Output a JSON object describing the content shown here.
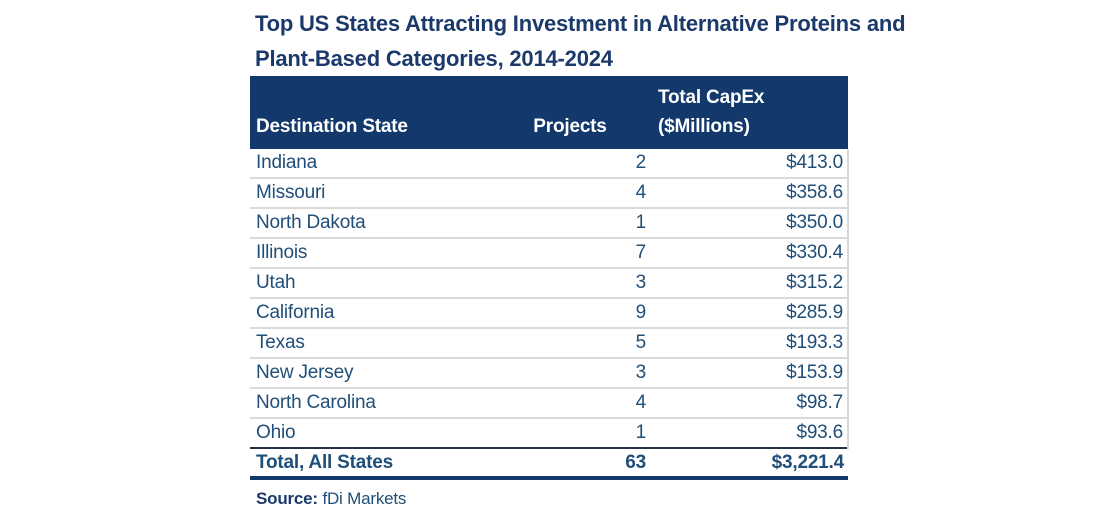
{
  "title": "Top US States Attracting Investment in Alternative Proteins and Plant-Based Categories, 2014-2024",
  "table": {
    "headers": [
      "Destination State",
      "Projects",
      "Total CapEx ($Millions)"
    ],
    "rows": [
      {
        "state": "Indiana",
        "projects": "2",
        "capex": "$413.0"
      },
      {
        "state": "Missouri",
        "projects": "4",
        "capex": "$358.6"
      },
      {
        "state": "North Dakota",
        "projects": "1",
        "capex": "$350.0"
      },
      {
        "state": "Illinois",
        "projects": "7",
        "capex": "$330.4"
      },
      {
        "state": "Utah",
        "projects": "3",
        "capex": "$315.2"
      },
      {
        "state": "California",
        "projects": "9",
        "capex": "$285.9"
      },
      {
        "state": "Texas",
        "projects": "5",
        "capex": "$193.3"
      },
      {
        "state": "New Jersey",
        "projects": "3",
        "capex": "$153.9"
      },
      {
        "state": "North Carolina",
        "projects": "4",
        "capex": "$98.7"
      },
      {
        "state": "Ohio",
        "projects": "1",
        "capex": "$93.6"
      }
    ],
    "total": {
      "state": "Total, All States",
      "projects": "63",
      "capex": "$3,221.4"
    }
  },
  "source": {
    "label": "Source:",
    "value": "fDi Markets"
  },
  "colors": {
    "header_bg": "#13386c",
    "header_text": "#ffffff",
    "title_text": "#1b3a6b",
    "body_text": "#1f4e79",
    "divider": "#d9d9d9",
    "total_top_border": "#253046",
    "total_bottom_border": "#13386c"
  },
  "chart_data": {
    "type": "table",
    "title": "Top US States Attracting Investment in Alternative Proteins and Plant-Based Categories, 2014-2024",
    "columns": [
      "Destination State",
      "Projects",
      "Total CapEx ($Millions)"
    ],
    "rows": [
      [
        "Indiana",
        2,
        413.0
      ],
      [
        "Missouri",
        4,
        358.6
      ],
      [
        "North Dakota",
        1,
        350.0
      ],
      [
        "Illinois",
        7,
        330.4
      ],
      [
        "Utah",
        3,
        315.2
      ],
      [
        "California",
        9,
        285.9
      ],
      [
        "Texas",
        5,
        193.3
      ],
      [
        "New Jersey",
        3,
        153.9
      ],
      [
        "North Carolina",
        4,
        98.7
      ],
      [
        "Ohio",
        1,
        93.6
      ]
    ],
    "total_row": [
      "Total, All States",
      63,
      3221.4
    ],
    "source": "fDi Markets"
  }
}
